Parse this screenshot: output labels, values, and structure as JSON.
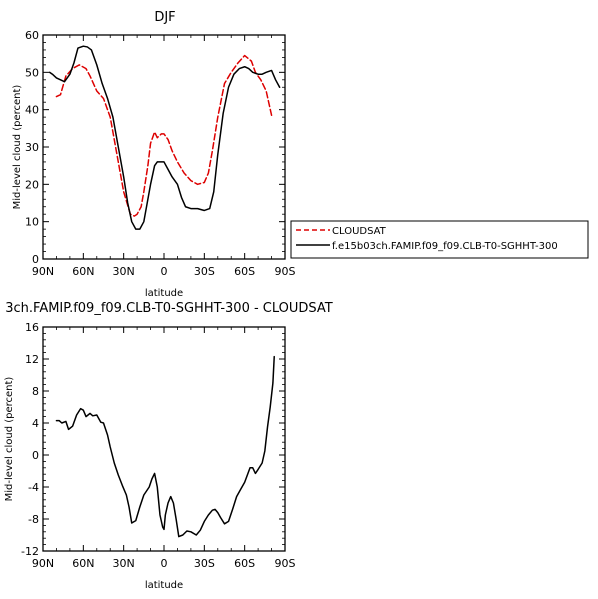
{
  "chart_data": [
    {
      "type": "line",
      "title": "DJF",
      "xlabel": "latitude",
      "ylabel": "Mid-level cloud (percent)",
      "xlim": [
        90,
        -90
      ],
      "ylim": [
        0,
        60
      ],
      "x_ticks": [
        90,
        60,
        30,
        0,
        -30,
        -60,
        -90
      ],
      "x_tick_labels": [
        "90N",
        "60N",
        "30N",
        "0",
        "30S",
        "60S",
        "90S"
      ],
      "y_ticks": [
        0,
        10,
        20,
        30,
        40,
        50,
        60
      ],
      "y_tick_labels": [
        "0",
        "10",
        "20",
        "30",
        "40",
        "50",
        "60"
      ],
      "legend_position": "right",
      "series": [
        {
          "name": "CLOUDSAT",
          "color": "#dd0000",
          "dash": true,
          "x": [
            80,
            77,
            73,
            68,
            63,
            58,
            55,
            50,
            45,
            40,
            35,
            30,
            25,
            22,
            20,
            17,
            15,
            12,
            10,
            7,
            5,
            2,
            0,
            -3,
            -6,
            -10,
            -15,
            -20,
            -25,
            -30,
            -33,
            -36,
            -40,
            -45,
            -50,
            -55,
            -60,
            -65,
            -68,
            -72,
            -76,
            -80
          ],
          "y": [
            43.5,
            44,
            49,
            51,
            52,
            51,
            49,
            45,
            43,
            38,
            28,
            18,
            12,
            11.5,
            12,
            14,
            18,
            25,
            31,
            34,
            32.5,
            33.5,
            33.5,
            32,
            29,
            26,
            23,
            21,
            20,
            20.5,
            23,
            29,
            38,
            47,
            50,
            52.5,
            54.5,
            53,
            50,
            48,
            45,
            38.5
          ]
        },
        {
          "name": "f.e15b03ch.FAMIP.f09_f09.CLB-T0-SGHHT-300",
          "color": "#000000",
          "dash": false,
          "x": [
            85,
            83,
            80,
            77,
            74,
            70,
            67,
            64,
            60,
            57,
            54,
            50,
            46,
            42,
            38,
            34,
            30,
            27,
            24,
            21,
            18,
            15,
            13,
            10,
            7,
            5,
            3,
            0,
            -3,
            -6,
            -10,
            -13,
            -16,
            -20,
            -25,
            -30,
            -34,
            -37,
            -40,
            -44,
            -48,
            -52,
            -56,
            -60,
            -63,
            -66,
            -70,
            -73,
            -76,
            -80,
            -83,
            -86
          ],
          "y": [
            50,
            49.5,
            48.5,
            48,
            47.5,
            49.5,
            52.5,
            56.5,
            57,
            56.8,
            56,
            52,
            47,
            43,
            38,
            30,
            22,
            15,
            10,
            8,
            8,
            10,
            14,
            20,
            25,
            26,
            26,
            26,
            24,
            22,
            20,
            16.5,
            14,
            13.5,
            13.5,
            13,
            13.5,
            18,
            28,
            39,
            46,
            49.5,
            51,
            51.5,
            51,
            50,
            49.5,
            49.5,
            50,
            50.5,
            48,
            46
          ]
        }
      ]
    },
    {
      "type": "line",
      "title": "3ch.FAMIP.f09_f09.CLB-T0-SGHHT-300 - CLOUDSAT",
      "xlabel": "latitude",
      "ylabel": "Mid-level cloud (percent)",
      "xlim": [
        90,
        -90
      ],
      "ylim": [
        -12,
        16
      ],
      "x_ticks": [
        90,
        60,
        30,
        0,
        -30,
        -60,
        -90
      ],
      "x_tick_labels": [
        "90N",
        "60N",
        "30N",
        "0",
        "30S",
        "60S",
        "90S"
      ],
      "y_ticks": [
        -12,
        -8,
        -4,
        0,
        4,
        8,
        12,
        16
      ],
      "y_tick_labels": [
        "-12",
        "-8",
        "-4",
        "0",
        "4",
        "8",
        "12",
        "16"
      ],
      "series": [
        {
          "color": "#000000",
          "dash": false,
          "x": [
            80,
            78,
            76,
            73,
            71,
            68,
            65,
            62,
            60,
            58,
            55,
            53,
            50,
            47,
            45,
            42,
            40,
            37,
            34,
            31,
            28,
            26,
            24,
            21,
            18,
            15,
            13,
            11,
            9,
            7,
            5,
            3,
            1,
            0,
            -1,
            -3,
            -5,
            -7,
            -9,
            -11,
            -14,
            -17,
            -20,
            -24,
            -27,
            -30,
            -33,
            -36,
            -38,
            -40,
            -42,
            -45,
            -48,
            -51,
            -54,
            -57,
            -60,
            -62,
            -64,
            -66,
            -68,
            -70,
            -73,
            -75,
            -77,
            -79,
            -81,
            -82
          ],
          "y": [
            4.3,
            4.3,
            4.0,
            4.2,
            3.2,
            3.6,
            5.0,
            5.8,
            5.6,
            4.8,
            5.2,
            4.9,
            5.0,
            4.1,
            4.0,
            2.5,
            1.0,
            -1.0,
            -2.5,
            -3.8,
            -5.0,
            -6.5,
            -8.5,
            -8.2,
            -6.5,
            -5.0,
            -4.5,
            -4.0,
            -3.0,
            -2.3,
            -4.0,
            -7.5,
            -9.0,
            -9.3,
            -7.5,
            -6.0,
            -5.2,
            -6.0,
            -8.0,
            -10.2,
            -10.0,
            -9.5,
            -9.6,
            -10.0,
            -9.4,
            -8.3,
            -7.5,
            -6.9,
            -6.8,
            -7.2,
            -7.8,
            -8.6,
            -8.3,
            -6.8,
            -5.2,
            -4.3,
            -3.4,
            -2.5,
            -1.6,
            -1.6,
            -2.3,
            -1.8,
            -1.0,
            0.5,
            3.5,
            6.0,
            9.0,
            12.3
          ]
        }
      ]
    }
  ]
}
